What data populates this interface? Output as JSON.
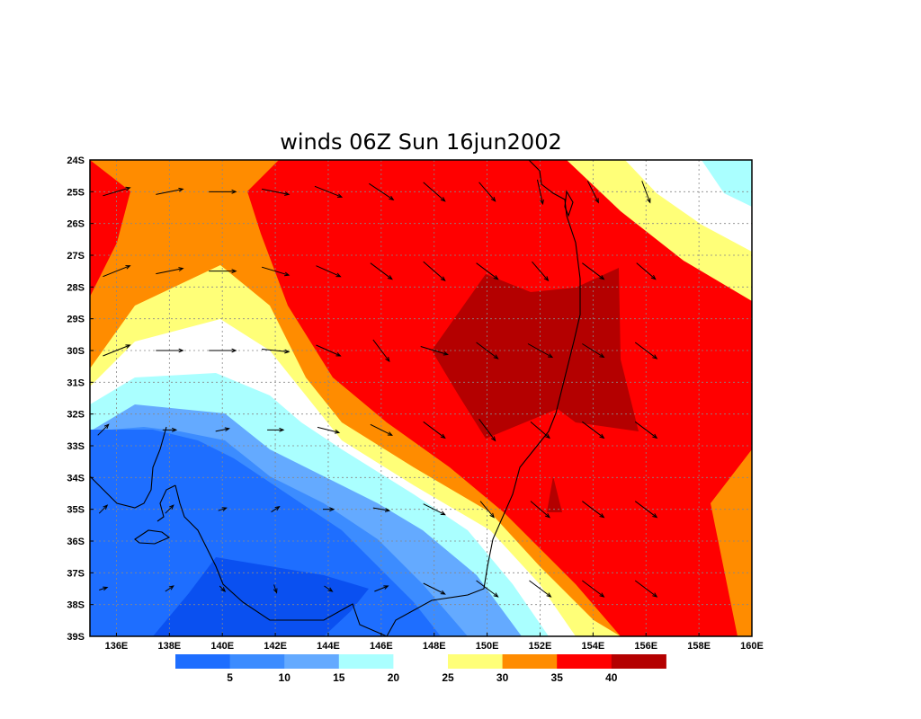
{
  "title": "winds 06Z Sun 16jun2002",
  "map": {
    "lon_range": [
      135,
      160
    ],
    "lat_range": [
      -39,
      -24
    ],
    "grid": true,
    "lon_ticks": [
      "136E",
      "138E",
      "140E",
      "142E",
      "144E",
      "146E",
      "148E",
      "150E",
      "152E",
      "154E",
      "156E",
      "158E",
      "160E"
    ],
    "lat_ticks": [
      "24S",
      "25S",
      "26S",
      "27S",
      "28S",
      "29S",
      "30S",
      "31S",
      "32S",
      "33S",
      "34S",
      "35S",
      "36S",
      "37S",
      "38S",
      "39S"
    ]
  },
  "colorbar": {
    "colors": [
      "#1e6eff",
      "#3c8cff",
      "#64aaff",
      "#aaffff",
      "#ffffff",
      "#ffff78",
      "#ff8c00",
      "#ff0000",
      "#b40000"
    ],
    "labels": [
      "5",
      "10",
      "15",
      "20",
      "25",
      "30",
      "35",
      "40"
    ]
  },
  "contour_colors": {
    "band_0_5": "#0a50f0",
    "band_5_10": "#1e6eff",
    "band_10_15": "#3c8cff",
    "band_15_20": "#64aaff",
    "band_20_25": "#aaffff",
    "band_25_30": "#ffffff",
    "band_30_35": "#ffff78",
    "band_35_40": "#ff8c00",
    "band_40_45": "#ff0000",
    "band_45_plus": "#b40000"
  },
  "vectors": [
    {
      "lon": 136,
      "lat": -25,
      "u": 1.0,
      "v": 0.3
    },
    {
      "lon": 138,
      "lat": -25,
      "u": 1.0,
      "v": 0.2
    },
    {
      "lon": 140,
      "lat": -25,
      "u": 1.0,
      "v": 0.0
    },
    {
      "lon": 142,
      "lat": -25,
      "u": 1.0,
      "v": -0.2
    },
    {
      "lon": 144,
      "lat": -25,
      "u": 1.0,
      "v": -0.4
    },
    {
      "lon": 146,
      "lat": -25,
      "u": 0.9,
      "v": -0.6
    },
    {
      "lon": 148,
      "lat": -25,
      "u": 0.8,
      "v": -0.7
    },
    {
      "lon": 150,
      "lat": -25,
      "u": 0.6,
      "v": -0.7
    },
    {
      "lon": 152,
      "lat": -25,
      "u": 0.2,
      "v": -0.9
    },
    {
      "lon": 154,
      "lat": -25,
      "u": 0.4,
      "v": -0.8
    },
    {
      "lon": 156,
      "lat": -25,
      "u": 0.3,
      "v": -0.8
    },
    {
      "lon": 136,
      "lat": -27.5,
      "u": 1.0,
      "v": 0.4
    },
    {
      "lon": 138,
      "lat": -27.5,
      "u": 1.0,
      "v": 0.2
    },
    {
      "lon": 140,
      "lat": -27.5,
      "u": 1.0,
      "v": 0.0
    },
    {
      "lon": 142,
      "lat": -27.5,
      "u": 1.0,
      "v": -0.3
    },
    {
      "lon": 144,
      "lat": -27.5,
      "u": 0.9,
      "v": -0.4
    },
    {
      "lon": 146,
      "lat": -27.5,
      "u": 0.8,
      "v": -0.6
    },
    {
      "lon": 148,
      "lat": -27.5,
      "u": 0.8,
      "v": -0.7
    },
    {
      "lon": 150,
      "lat": -27.5,
      "u": 0.8,
      "v": -0.6
    },
    {
      "lon": 152,
      "lat": -27.5,
      "u": 0.6,
      "v": -0.7
    },
    {
      "lon": 154,
      "lat": -27.5,
      "u": 0.8,
      "v": -0.6
    },
    {
      "lon": 156,
      "lat": -27.5,
      "u": 0.7,
      "v": -0.6
    },
    {
      "lon": 136,
      "lat": -30,
      "u": 1.0,
      "v": 0.4
    },
    {
      "lon": 138,
      "lat": -30,
      "u": 1.0,
      "v": 0.0
    },
    {
      "lon": 140,
      "lat": -30,
      "u": 1.0,
      "v": 0.0
    },
    {
      "lon": 142,
      "lat": -30,
      "u": 1.0,
      "v": -0.1
    },
    {
      "lon": 144,
      "lat": -30,
      "u": 0.9,
      "v": -0.4
    },
    {
      "lon": 146,
      "lat": -30,
      "u": 0.6,
      "v": -0.8
    },
    {
      "lon": 148,
      "lat": -30,
      "u": 1.0,
      "v": -0.3
    },
    {
      "lon": 150,
      "lat": -30,
      "u": 0.8,
      "v": -0.6
    },
    {
      "lon": 152,
      "lat": -30,
      "u": 0.9,
      "v": -0.5
    },
    {
      "lon": 154,
      "lat": -30,
      "u": 0.8,
      "v": -0.5
    },
    {
      "lon": 156,
      "lat": -30,
      "u": 0.8,
      "v": -0.6
    },
    {
      "lon": 135.5,
      "lat": -32.5,
      "u": 0.4,
      "v": 0.4
    },
    {
      "lon": 138,
      "lat": -32.5,
      "u": 0.5,
      "v": 0.0
    },
    {
      "lon": 140,
      "lat": -32.5,
      "u": 0.5,
      "v": 0.1
    },
    {
      "lon": 142,
      "lat": -32.5,
      "u": 0.6,
      "v": 0.0
    },
    {
      "lon": 144,
      "lat": -32.5,
      "u": 0.8,
      "v": -0.2
    },
    {
      "lon": 146,
      "lat": -32.5,
      "u": 0.8,
      "v": -0.4
    },
    {
      "lon": 148,
      "lat": -32.5,
      "u": 0.8,
      "v": -0.6
    },
    {
      "lon": 150,
      "lat": -32.5,
      "u": 0.6,
      "v": -0.8
    },
    {
      "lon": 152,
      "lat": -32.5,
      "u": 0.7,
      "v": -0.6
    },
    {
      "lon": 154,
      "lat": -32.5,
      "u": 0.8,
      "v": -0.6
    },
    {
      "lon": 156,
      "lat": -32.5,
      "u": 0.8,
      "v": -0.6
    },
    {
      "lon": 135.5,
      "lat": -35,
      "u": 0.3,
      "v": 0.3
    },
    {
      "lon": 138,
      "lat": -35,
      "u": 0.3,
      "v": 0.3
    },
    {
      "lon": 140,
      "lat": -35,
      "u": 0.3,
      "v": 0.1
    },
    {
      "lon": 142,
      "lat": -35,
      "u": 0.3,
      "v": 0.2
    },
    {
      "lon": 144,
      "lat": -35,
      "u": 0.4,
      "v": 0.0
    },
    {
      "lon": 146,
      "lat": -35,
      "u": 0.6,
      "v": -0.1
    },
    {
      "lon": 148,
      "lat": -35,
      "u": 0.8,
      "v": -0.4
    },
    {
      "lon": 150,
      "lat": -35,
      "u": 0.5,
      "v": -0.6
    },
    {
      "lon": 152,
      "lat": -35,
      "u": 0.7,
      "v": -0.6
    },
    {
      "lon": 154,
      "lat": -35,
      "u": 0.8,
      "v": -0.6
    },
    {
      "lon": 156,
      "lat": -35,
      "u": 0.8,
      "v": -0.6
    },
    {
      "lon": 135.5,
      "lat": -37.5,
      "u": 0.3,
      "v": 0.1
    },
    {
      "lon": 138,
      "lat": -37.5,
      "u": 0.3,
      "v": 0.2
    },
    {
      "lon": 140,
      "lat": -37.5,
      "u": 0.2,
      "v": -0.2
    },
    {
      "lon": 142,
      "lat": -37.5,
      "u": 0.1,
      "v": -0.3
    },
    {
      "lon": 144,
      "lat": -37.5,
      "u": 0.3,
      "v": -0.2
    },
    {
      "lon": 146,
      "lat": -37.5,
      "u": 0.5,
      "v": 0.2
    },
    {
      "lon": 148,
      "lat": -37.5,
      "u": 0.8,
      "v": -0.4
    },
    {
      "lon": 150,
      "lat": -37.5,
      "u": 0.8,
      "v": -0.6
    },
    {
      "lon": 152,
      "lat": -37.5,
      "u": 0.8,
      "v": -0.6
    },
    {
      "lon": 154,
      "lat": -37.5,
      "u": 0.8,
      "v": -0.6
    },
    {
      "lon": 156,
      "lat": -37.5,
      "u": 0.8,
      "v": -0.6
    }
  ]
}
